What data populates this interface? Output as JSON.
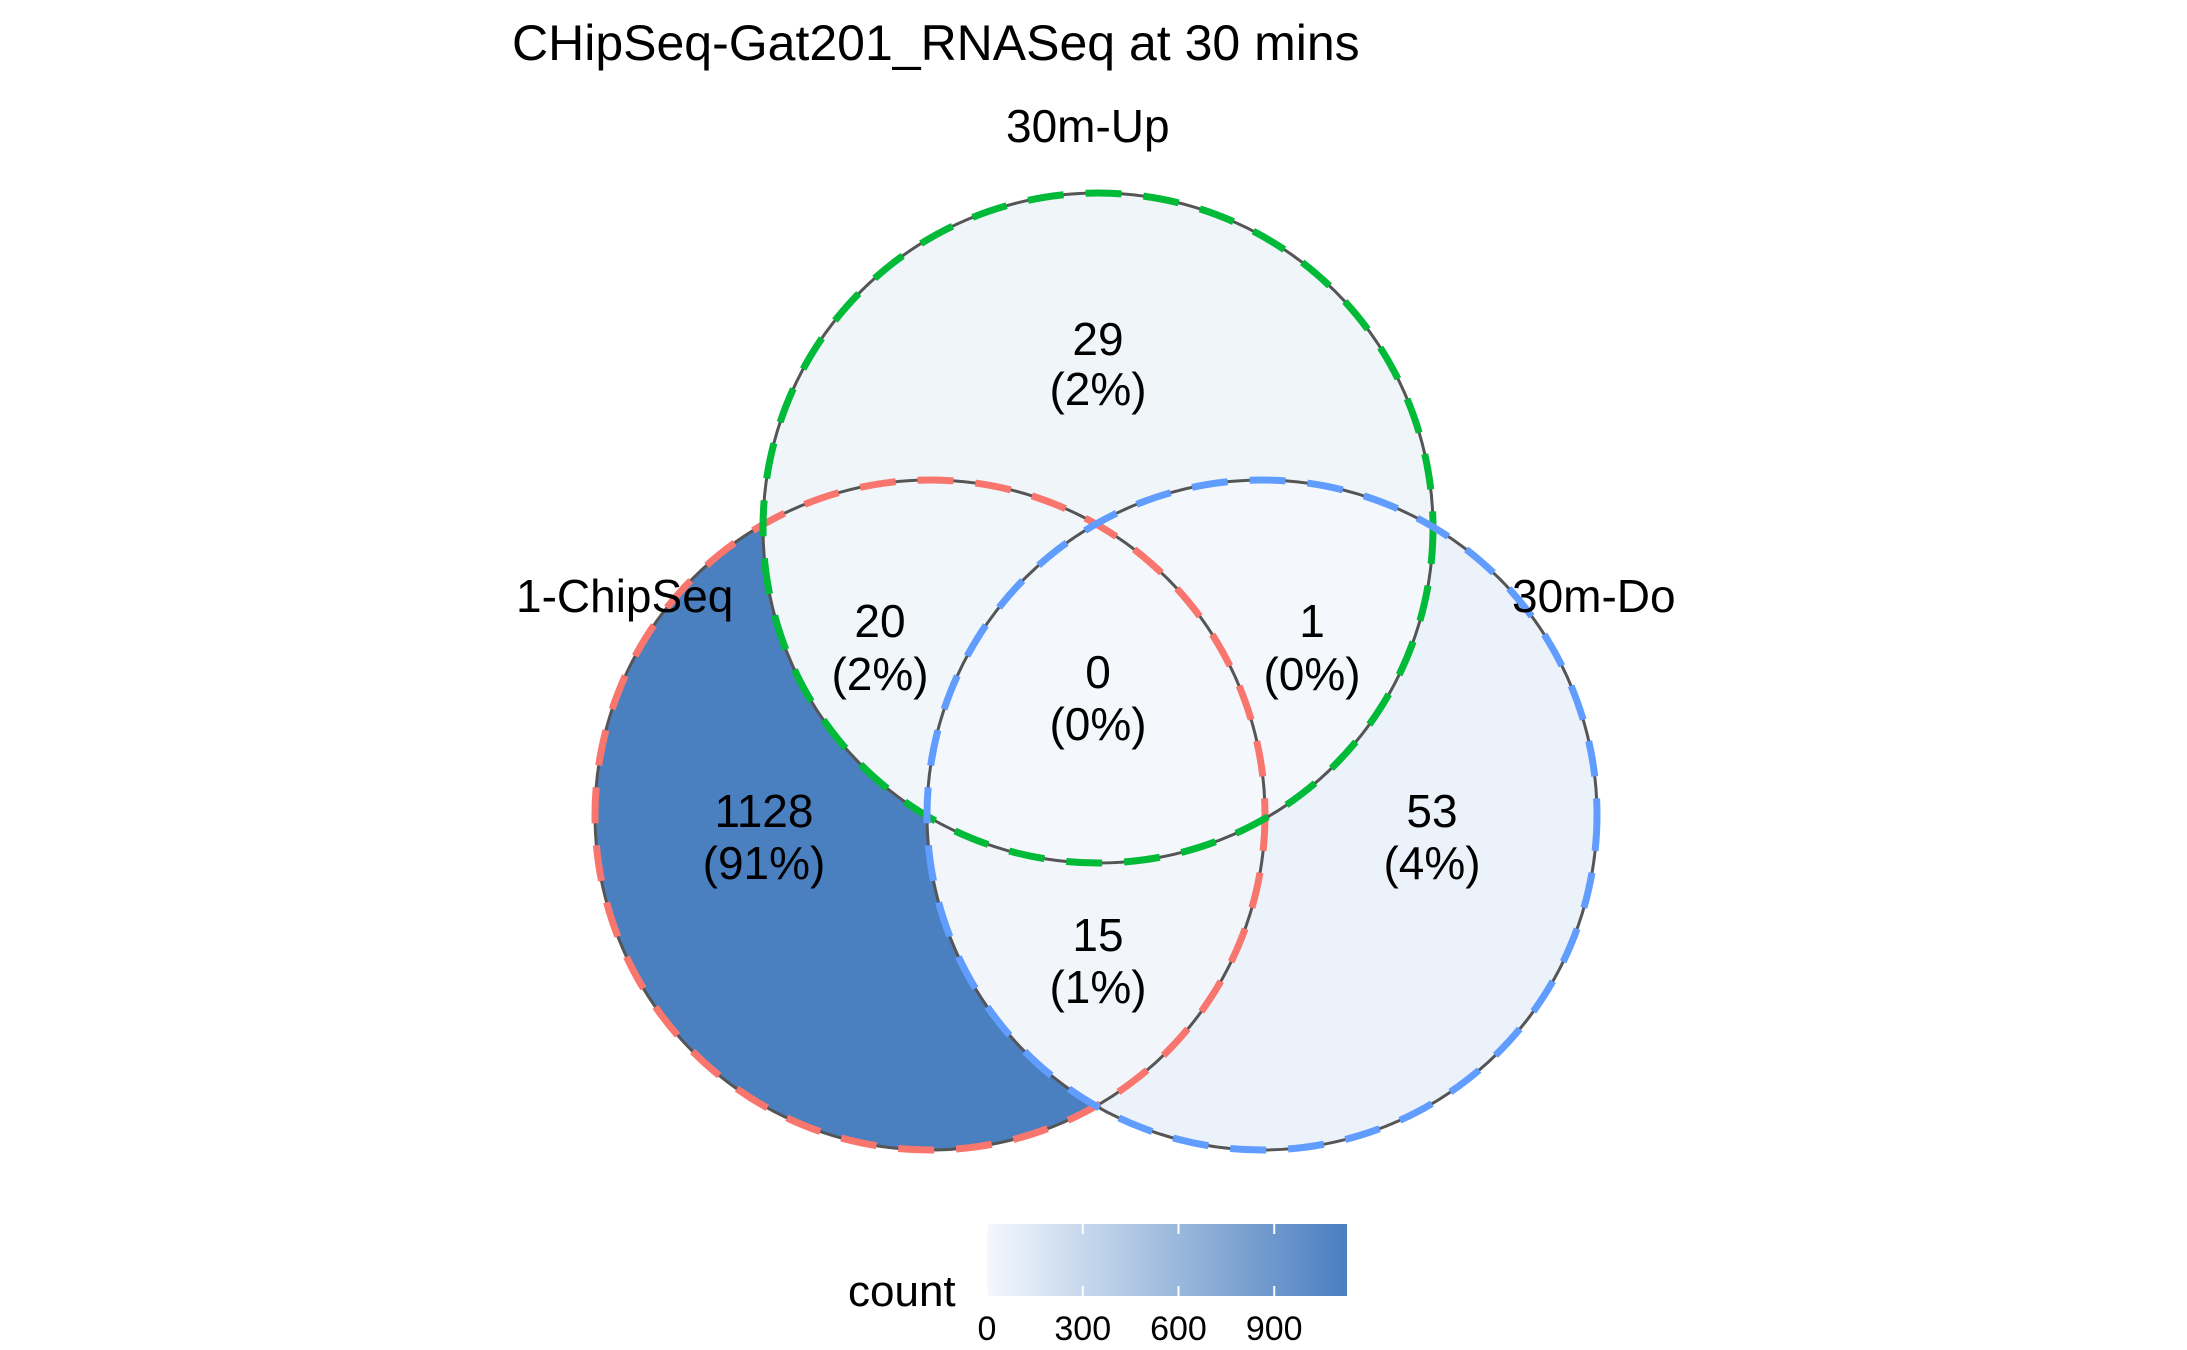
{
  "chart_data": {
    "type": "venn",
    "title": "CHipSeq-Gat201_RNASeq at 30 mins",
    "sets": [
      {
        "name": "1-ChipSeq",
        "color": "#F8766D"
      },
      {
        "name": "30m-Up",
        "color": "#00BA38"
      },
      {
        "name": "30m-Do",
        "color": "#619CFF"
      }
    ],
    "regions": [
      {
        "sets": [
          "1-ChipSeq"
        ],
        "count": "1128",
        "percent": "(91%)",
        "value": 1128
      },
      {
        "sets": [
          "30m-Up"
        ],
        "count": "29",
        "percent": "(2%)",
        "value": 29
      },
      {
        "sets": [
          "30m-Do"
        ],
        "count": "53",
        "percent": "(4%)",
        "value": 53
      },
      {
        "sets": [
          "1-ChipSeq",
          "30m-Up"
        ],
        "count": "20",
        "percent": "(2%)",
        "value": 20
      },
      {
        "sets": [
          "30m-Up",
          "30m-Do"
        ],
        "count": "1",
        "percent": "(0%)",
        "value": 1
      },
      {
        "sets": [
          "1-ChipSeq",
          "30m-Do"
        ],
        "count": "15",
        "percent": "(1%)",
        "value": 15
      },
      {
        "sets": [
          "1-ChipSeq",
          "30m-Up",
          "30m-Do"
        ],
        "count": "0",
        "percent": "(0%)",
        "value": 0
      }
    ],
    "legend": {
      "title": "count",
      "ticks": [
        "0",
        "300",
        "600",
        "900"
      ],
      "tick_values": [
        0,
        300,
        600,
        900
      ],
      "range": [
        0,
        1128
      ],
      "low_color": "#F4F8FC",
      "high_color": "#4A7FC0",
      "placement": "bottom"
    }
  }
}
